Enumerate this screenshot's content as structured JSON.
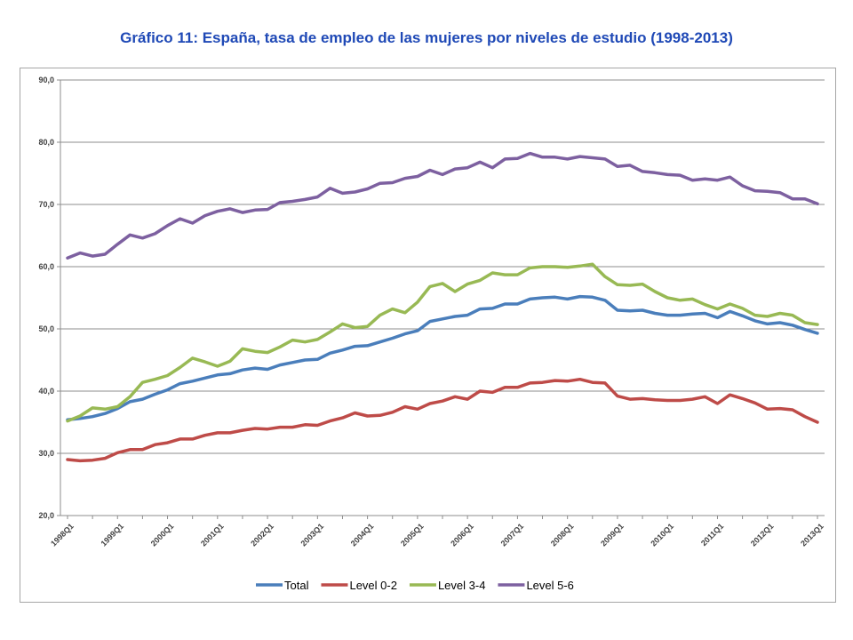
{
  "title": "Gráfico 11: España, tasa de empleo de las mujeres por niveles de estudio (1998-2013)",
  "chart_data": {
    "type": "line",
    "title": "Gráfico 11: España, tasa de empleo de las mujeres por niveles de estudio (1998-2013)",
    "xlabel": "",
    "ylabel": "",
    "ylim": [
      20,
      90
    ],
    "yticks": [
      "20,0",
      "30,0",
      "40,0",
      "50,0",
      "60,0",
      "70,0",
      "80,0",
      "90,0"
    ],
    "xtick_labels": [
      "1998Q1",
      "1999Q1",
      "2000Q1",
      "2001Q1",
      "2002Q1",
      "2003Q1",
      "2004Q1",
      "2005Q1",
      "2006Q1",
      "2007Q1",
      "2008Q1",
      "2009Q1",
      "2010Q1",
      "2011Q1",
      "2012Q1",
      "2013Q1"
    ],
    "x_start": "1998Q1",
    "x_end": "2013Q1",
    "grid": "horizontal",
    "legend_position": "bottom",
    "series": [
      {
        "name": "Total",
        "color": "#4a7ebb",
        "values": [
          35.4,
          35.6,
          35.9,
          36.4,
          37.2,
          38.3,
          38.7,
          39.5,
          40.2,
          41.2,
          41.6,
          42.1,
          42.6,
          42.8,
          43.4,
          43.7,
          43.5,
          44.2,
          44.6,
          45.0,
          45.1,
          46.1,
          46.6,
          47.2,
          47.3,
          47.9,
          48.5,
          49.2,
          49.7,
          51.2,
          51.6,
          52.0,
          52.2,
          53.2,
          53.3,
          54.0,
          54.0,
          54.8,
          55.0,
          55.1,
          54.8,
          55.2,
          55.1,
          54.6,
          53.0,
          52.9,
          53.0,
          52.5,
          52.2,
          52.2,
          52.4,
          52.5,
          51.8,
          52.8,
          52.1,
          51.3,
          50.8,
          51.0,
          50.6,
          49.9,
          49.3
        ]
      },
      {
        "name": "Level 0-2",
        "color": "#be4b48",
        "values": [
          29.0,
          28.8,
          28.9,
          29.2,
          30.1,
          30.6,
          30.6,
          31.4,
          31.7,
          32.3,
          32.3,
          32.9,
          33.3,
          33.3,
          33.7,
          34.0,
          33.9,
          34.2,
          34.2,
          34.6,
          34.5,
          35.2,
          35.7,
          36.5,
          36.0,
          36.1,
          36.6,
          37.5,
          37.1,
          38.0,
          38.4,
          39.1,
          38.7,
          40.0,
          39.8,
          40.6,
          40.6,
          41.3,
          41.4,
          41.7,
          41.6,
          41.9,
          41.4,
          41.3,
          39.2,
          38.7,
          38.8,
          38.6,
          38.5,
          38.5,
          38.7,
          39.1,
          38.0,
          39.4,
          38.8,
          38.1,
          37.1,
          37.2,
          37.0,
          35.9,
          35.0
        ]
      },
      {
        "name": "Level 3-4",
        "color": "#98b954",
        "values": [
          35.2,
          36.0,
          37.3,
          37.1,
          37.5,
          39.1,
          41.4,
          41.9,
          42.5,
          43.8,
          45.3,
          44.7,
          44.0,
          44.8,
          46.8,
          46.4,
          46.2,
          47.1,
          48.2,
          47.9,
          48.3,
          49.5,
          50.8,
          50.2,
          50.4,
          52.2,
          53.2,
          52.6,
          54.3,
          56.8,
          57.3,
          56.0,
          57.2,
          57.8,
          59.0,
          58.7,
          58.7,
          59.8,
          60.0,
          60.0,
          59.9,
          60.1,
          60.4,
          58.4,
          57.1,
          57.0,
          57.2,
          56.0,
          55.0,
          54.6,
          54.8,
          53.9,
          53.2,
          54.0,
          53.3,
          52.2,
          52.0,
          52.5,
          52.2,
          51.0,
          50.7
        ]
      },
      {
        "name": "Level 5-6",
        "color": "#7d60a0",
        "values": [
          61.4,
          62.2,
          61.7,
          62.0,
          63.6,
          65.1,
          64.6,
          65.3,
          66.6,
          67.7,
          67.0,
          68.2,
          68.9,
          69.3,
          68.7,
          69.1,
          69.2,
          70.3,
          70.5,
          70.8,
          71.2,
          72.6,
          71.8,
          72.0,
          72.5,
          73.4,
          73.5,
          74.2,
          74.5,
          75.5,
          74.8,
          75.7,
          75.9,
          76.8,
          75.9,
          77.3,
          77.4,
          78.2,
          77.6,
          77.6,
          77.3,
          77.7,
          77.5,
          77.3,
          76.1,
          76.3,
          75.3,
          75.1,
          74.8,
          74.7,
          73.9,
          74.1,
          73.9,
          74.4,
          73.0,
          72.2,
          72.1,
          71.9,
          70.9,
          70.9,
          70.1
        ]
      }
    ]
  }
}
